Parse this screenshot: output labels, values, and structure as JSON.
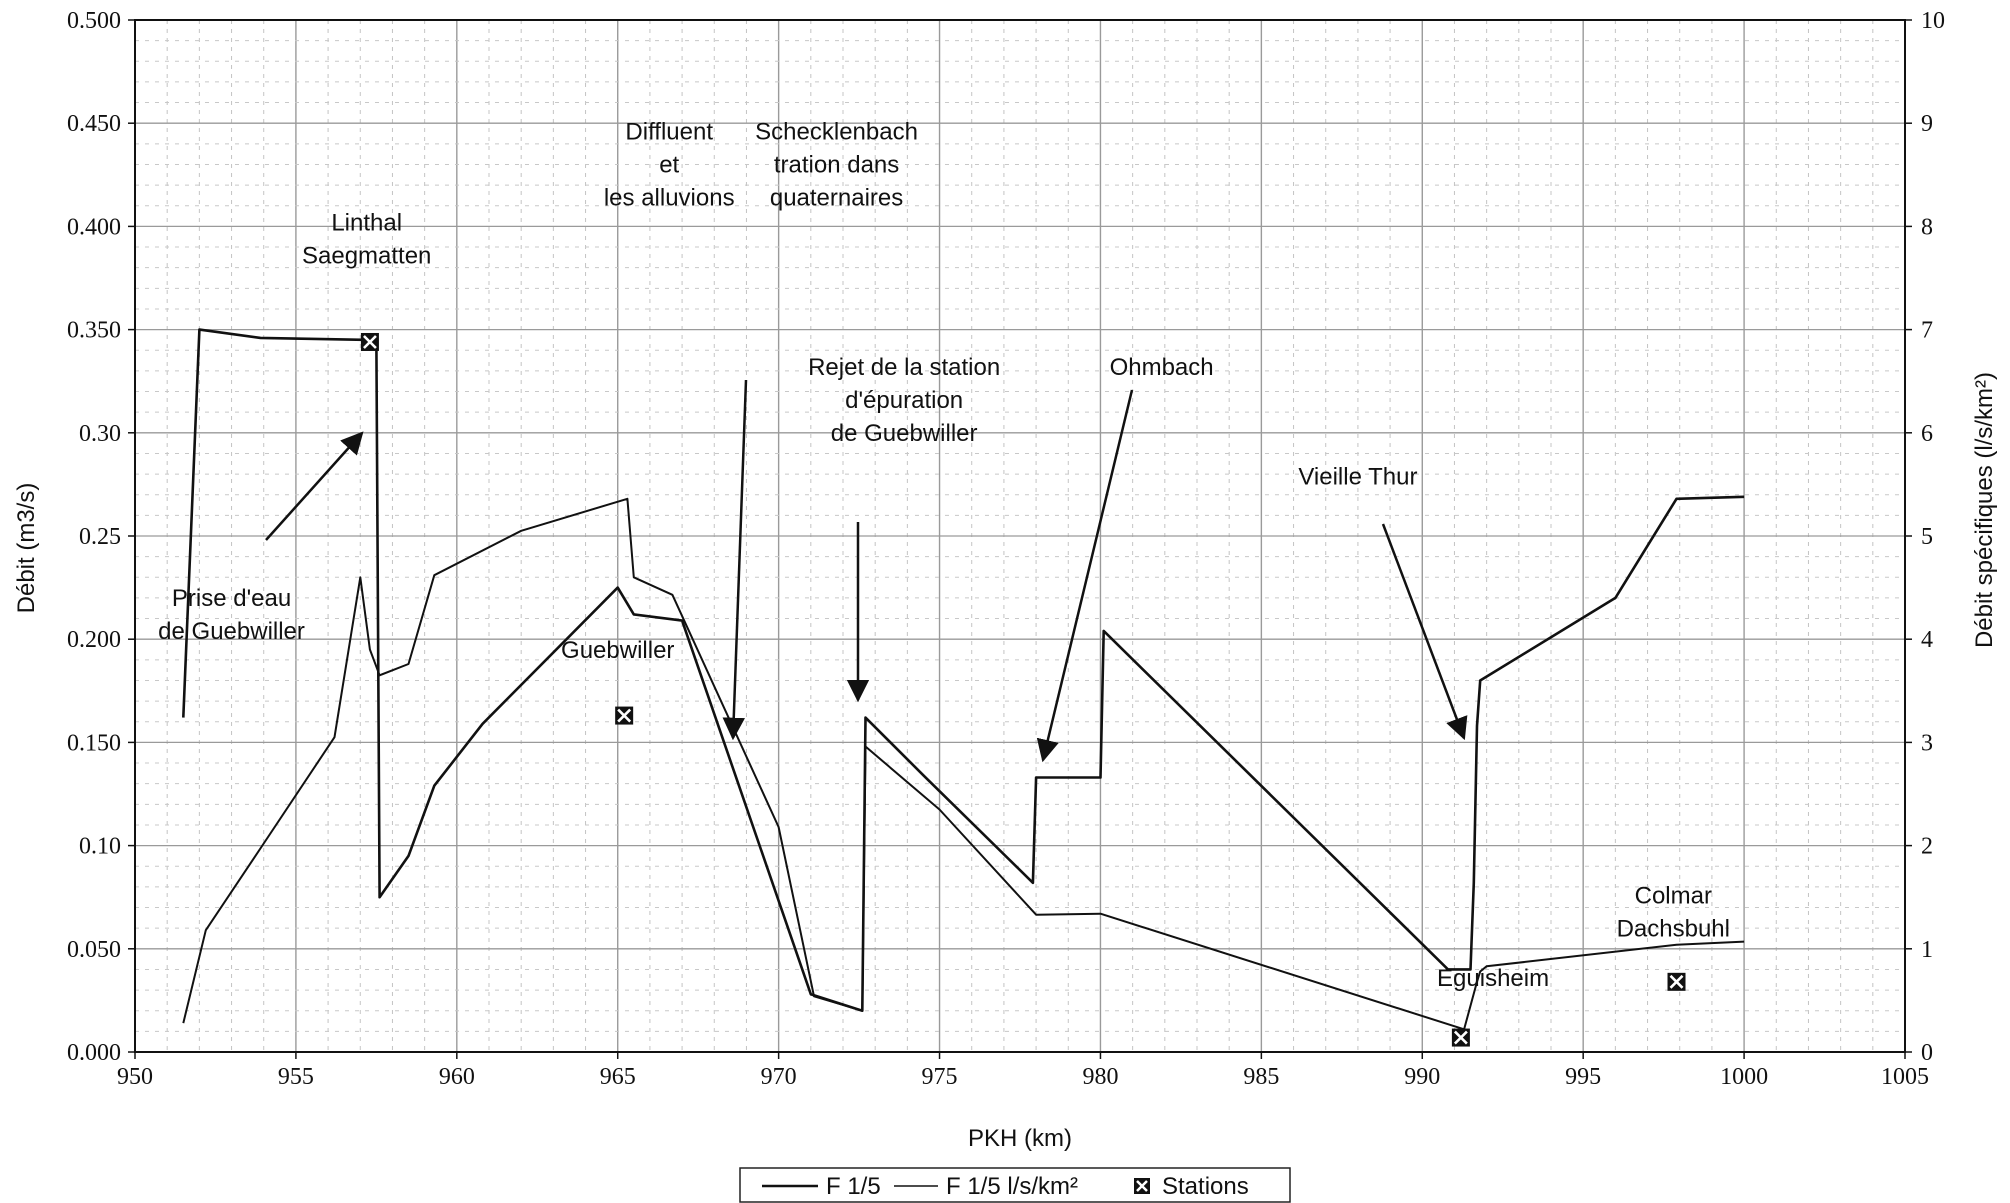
{
  "chart_data": {
    "type": "line",
    "xlabel": "PKH (km)",
    "ylabel": "Débit (m3/s)",
    "y2label": "Débit spécifiques (l/s/km²)",
    "xlim": [
      950,
      1005
    ],
    "ylim": [
      0,
      0.5
    ],
    "y2lim": [
      0,
      10
    ],
    "grid": true,
    "x_ticks": [
      "950",
      "955",
      "960",
      "965",
      "970",
      "975",
      "980",
      "985",
      "990",
      "995",
      "1000",
      "1005"
    ],
    "y_ticks": [
      "0.000",
      "0.050",
      "0.10",
      "0.150",
      "0.200",
      "0.25",
      "0.30",
      "0.350",
      "0.400",
      "0.450",
      "0.500"
    ],
    "y2_ticks": [
      "0",
      "1",
      "2",
      "3",
      "4",
      "5",
      "6",
      "7",
      "8",
      "9",
      "10"
    ],
    "series": [
      {
        "name": "F 1/5",
        "axis": "left",
        "x": [
          951.5,
          952.0,
          953.9,
          957.3,
          957.5,
          957.6,
          958.5,
          959.3,
          960.8,
          965.0,
          965.5,
          967.0,
          971.0,
          972.6,
          972.7,
          974.5,
          977.9,
          978.0,
          980.0,
          980.1,
          990.8,
          991.5,
          991.6,
          991.7,
          991.8,
          996.0,
          997.9,
          1000.0
        ],
        "y": [
          0.162,
          0.35,
          0.346,
          0.345,
          0.342,
          0.075,
          0.095,
          0.129,
          0.159,
          0.225,
          0.212,
          0.209,
          0.028,
          0.02,
          0.162,
          0.134,
          0.082,
          0.133,
          0.133,
          0.204,
          0.04,
          0.04,
          0.082,
          0.158,
          0.18,
          0.22,
          0.268,
          0.269
        ]
      },
      {
        "name": "F 1/5 l/s/km²",
        "axis": "right",
        "x": [
          951.5,
          952.2,
          954.0,
          956.2,
          957.0,
          957.3,
          957.6,
          958.5,
          959.3,
          962.0,
          965.3,
          965.5,
          966.7,
          970.0,
          971.1,
          972.6,
          972.7,
          975.0,
          978.0,
          980.0,
          991.3,
          991.7,
          991.8,
          992.0,
          997.9,
          1000.0
        ],
        "y": [
          0.28,
          1.18,
          2.02,
          3.05,
          4.6,
          3.9,
          3.65,
          3.76,
          4.62,
          5.05,
          5.36,
          4.6,
          4.43,
          2.18,
          0.54,
          0.4,
          2.96,
          2.35,
          1.33,
          1.34,
          0.22,
          0.68,
          0.78,
          0.83,
          1.04,
          1.07
        ]
      },
      {
        "name": "Stations",
        "axis": "left",
        "x": [
          957.3,
          965.2,
          991.2,
          997.9
        ],
        "y": [
          0.344,
          0.163,
          0.007,
          0.034
        ]
      }
    ],
    "annotations": [
      {
        "lines": [
          "Linthal",
          "Saegmatten"
        ],
        "x": 957.2,
        "y": 0.398
      },
      {
        "lines": [
          "Prise d'eau",
          "de Guebwiller"
        ],
        "x": 953.0,
        "y": 0.216
      },
      {
        "lines": [
          "Guebwiller"
        ],
        "x": 965.0,
        "y": 0.191
      },
      {
        "lines": [
          "Diffluent",
          "et",
          "les alluvions"
        ],
        "x": 966.6,
        "y": 0.442
      },
      {
        "lines": [
          "Schecklenbach",
          "tration dans",
          "quaternaires"
        ],
        "x": 971.8,
        "y": 0.442
      },
      {
        "lines": [
          "Rejet de la station",
          "d'épuration",
          "de Guebwiller"
        ],
        "x": 973.9,
        "y": 0.328
      },
      {
        "lines": [
          "Ohmbach"
        ],
        "x": 981.9,
        "y": 0.328
      },
      {
        "lines": [
          "Vieille Thur"
        ],
        "x": 988.0,
        "y": 0.275
      },
      {
        "lines": [
          "Eguisheim"
        ],
        "x": 992.2,
        "y": 0.032
      },
      {
        "lines": [
          "Colmar",
          "Dachsbuhl"
        ],
        "x": 997.8,
        "y": 0.072
      }
    ],
    "legend": {
      "placement": "bottom",
      "entries": [
        "F 1/5",
        "F 1/5 l/s/km²",
        "Stations"
      ]
    }
  }
}
